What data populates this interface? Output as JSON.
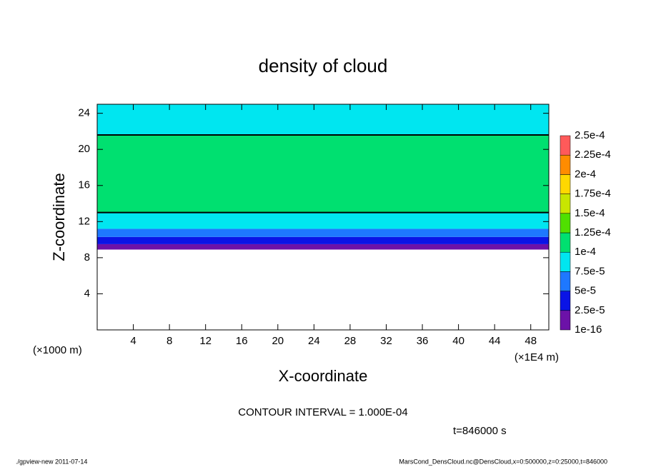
{
  "chart_data": {
    "type": "contour",
    "title": "density of cloud",
    "xlabel": "X-coordinate",
    "ylabel": "Z-coordinate",
    "xunit": "(×1E4 m)",
    "yunit": "(×1000 m)",
    "xlim": [
      0,
      50
    ],
    "ylim": [
      0,
      25
    ],
    "xticks": [
      4,
      8,
      12,
      16,
      20,
      24,
      28,
      32,
      36,
      40,
      44,
      48
    ],
    "yticks": [
      4,
      8,
      12,
      16,
      20,
      24
    ],
    "field": {
      "z_bounds": [
        8.9,
        9.5,
        10.3,
        11.2,
        12.3,
        13,
        21.6,
        25
      ],
      "values": [
        1e-05,
        3.5e-05,
        6e-05,
        8e-05,
        9e-05,
        0.00011,
        9e-05
      ]
    },
    "contour_level": 0.0001,
    "colorbar": {
      "levels": [
        {
          "value": 1e-16,
          "label": "1e-16"
        },
        {
          "value": 2.5e-05,
          "label": "2.5e-5"
        },
        {
          "value": 5e-05,
          "label": "5e-5"
        },
        {
          "value": 7.5e-05,
          "label": "7.5e-5"
        },
        {
          "value": 0.0001,
          "label": "1e-4"
        },
        {
          "value": 0.000125,
          "label": "1.25e-4"
        },
        {
          "value": 0.00015,
          "label": "1.5e-4"
        },
        {
          "value": 0.000175,
          "label": "1.75e-4"
        },
        {
          "value": 0.0002,
          "label": "2e-4"
        },
        {
          "value": 0.000225,
          "label": "2.25e-4"
        },
        {
          "value": 0.00025,
          "label": "2.5e-4"
        }
      ],
      "colors": [
        "#6c12a8",
        "#0a14e6",
        "#1e78ff",
        "#00e6f0",
        "#00e070",
        "#50e000",
        "#c8e600",
        "#ffd800",
        "#ff8c00",
        "#ff5a5a"
      ]
    },
    "contour_interval": "CONTOUR INTERVAL = 1.000E-04",
    "time_label": "t=846000 s",
    "footer_left": "./gpview-new  2011-07-14",
    "footer_right": "MarsCond_DensCloud.nc@DensCloud,x=0:500000,z=0:25000,t=846000"
  }
}
